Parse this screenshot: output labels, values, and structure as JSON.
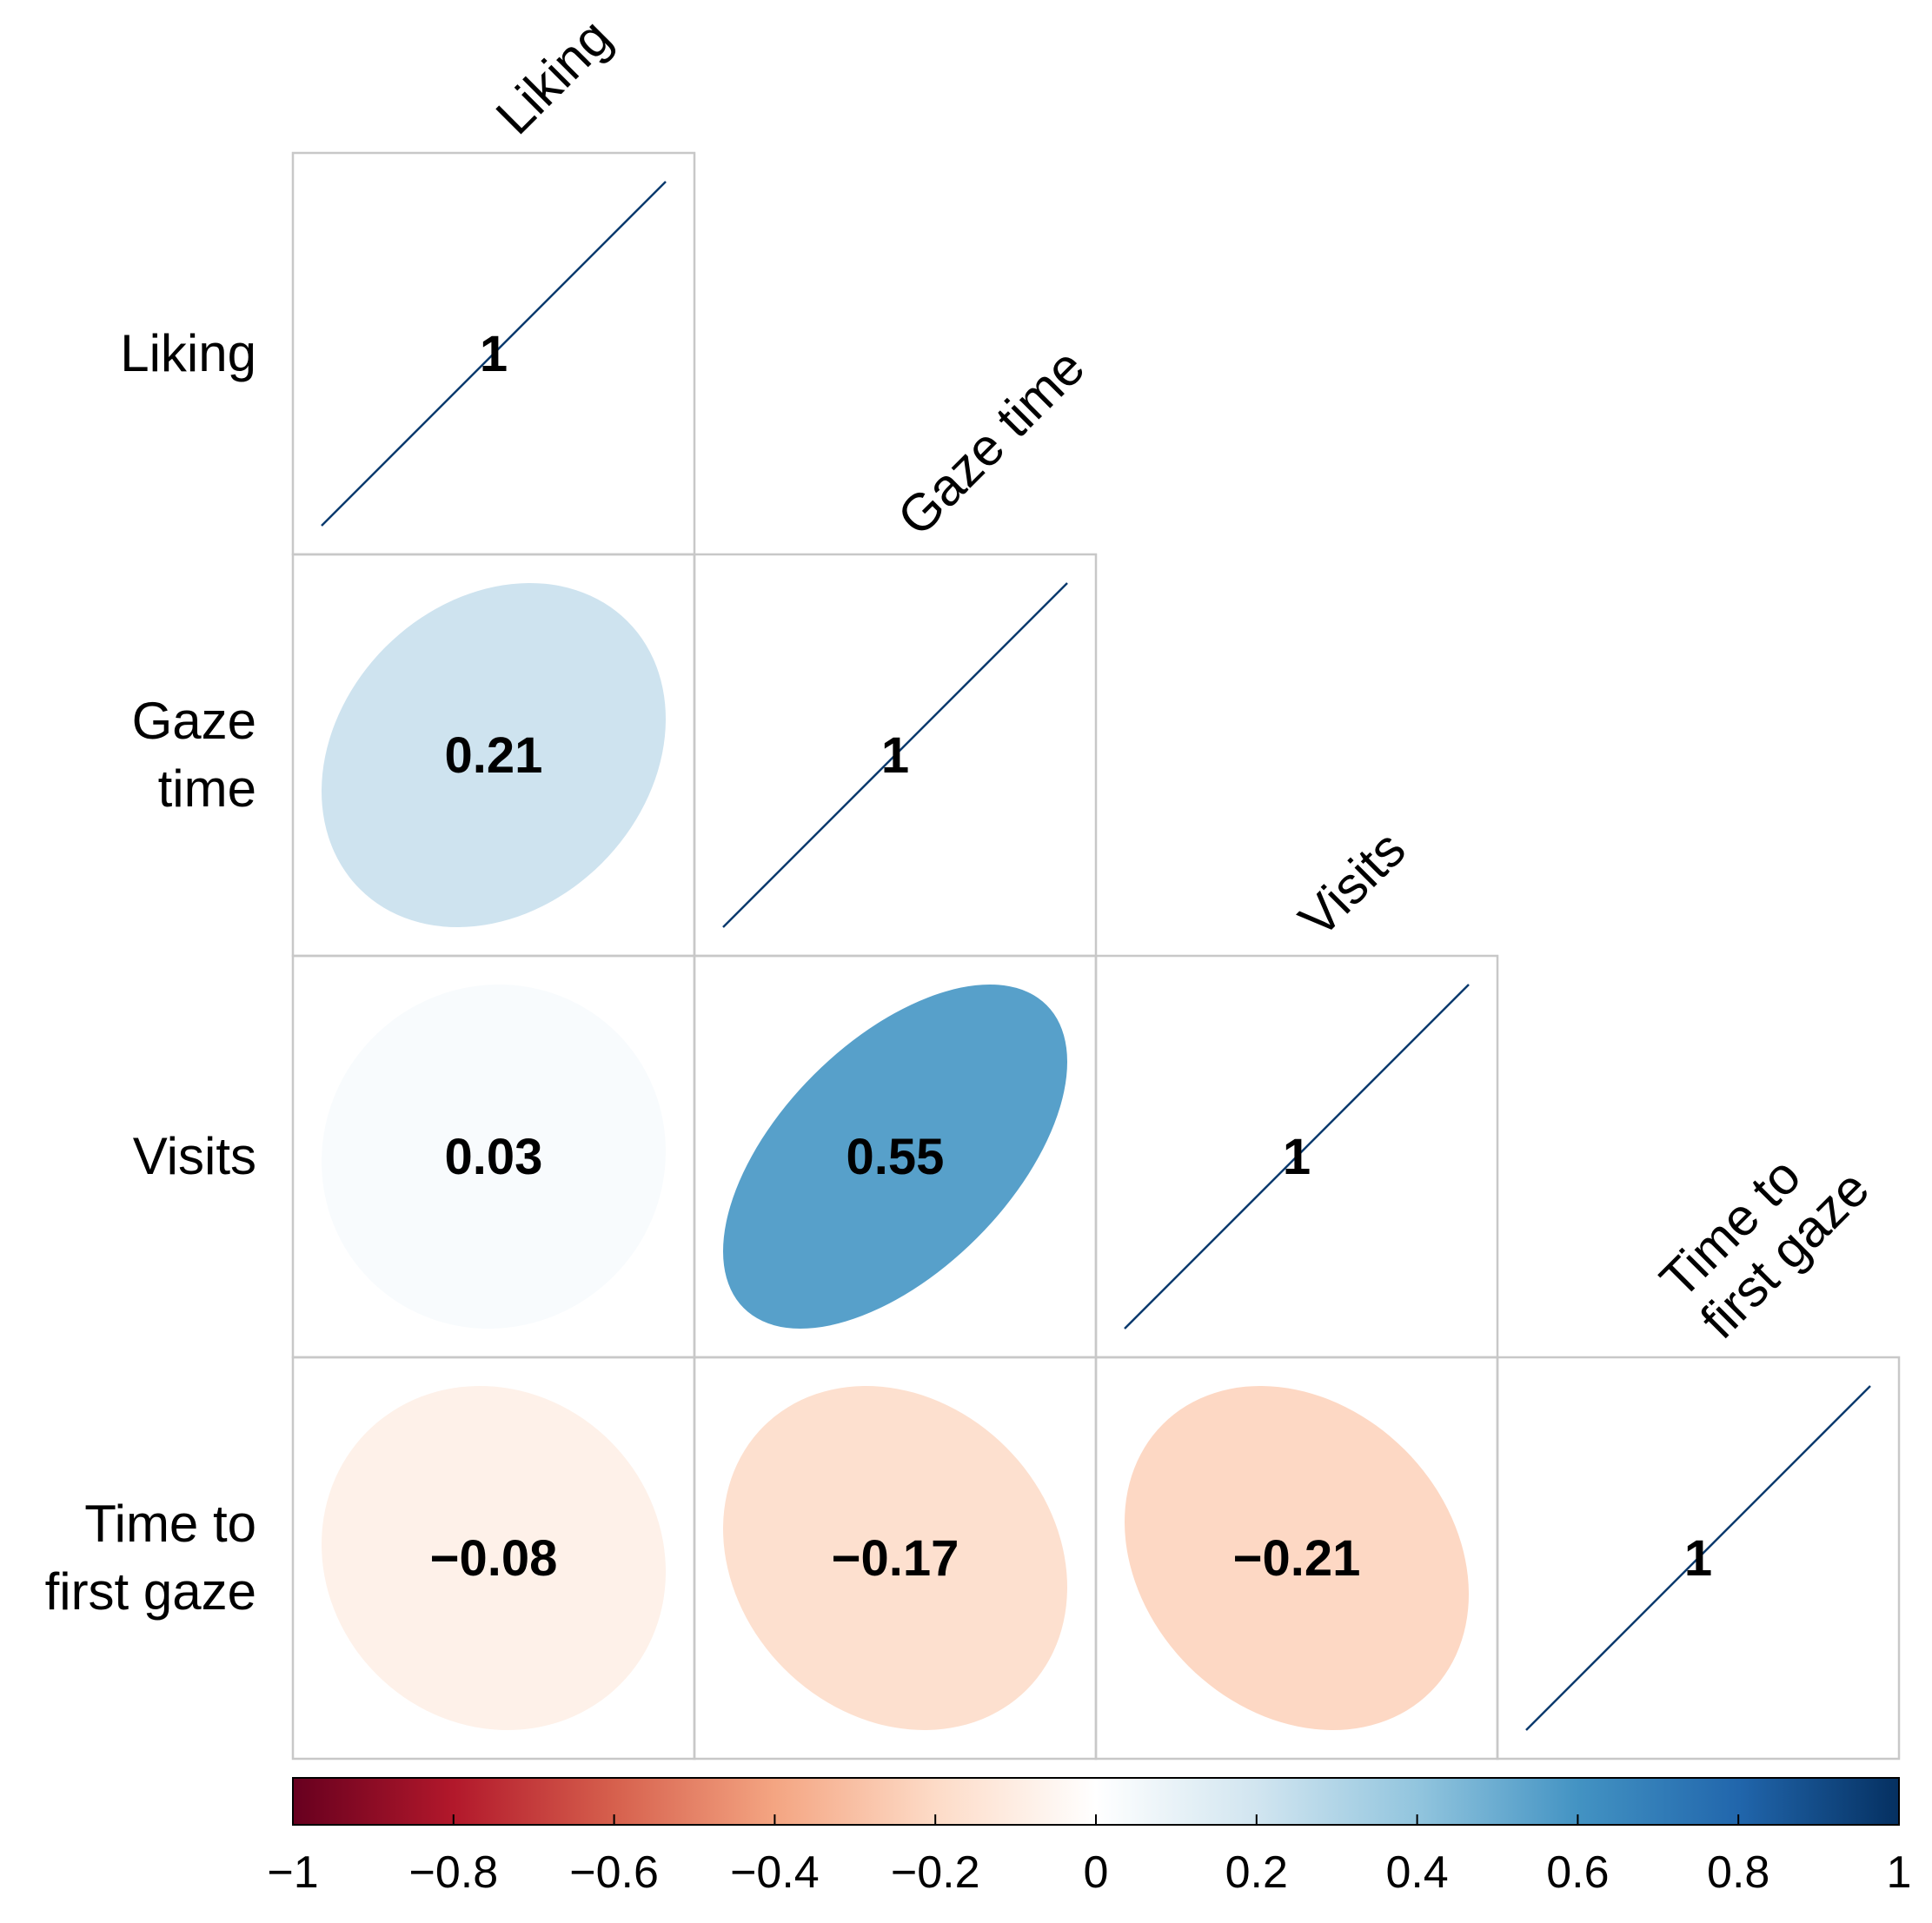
{
  "chart_data": {
    "type": "heatmap",
    "subtype": "correlation-ellipse-lower-triangle",
    "variables": [
      {
        "row_lines": [
          "Liking"
        ],
        "col_lines": [
          "Liking"
        ]
      },
      {
        "row_lines": [
          "Gaze",
          "time"
        ],
        "col_lines": [
          "Gaze time"
        ]
      },
      {
        "row_lines": [
          "Visits"
        ],
        "col_lines": [
          "Visits"
        ]
      },
      {
        "row_lines": [
          "Time to",
          "first gaze"
        ],
        "col_lines": [
          "Time to",
          "first gaze"
        ]
      }
    ],
    "matrix": [
      [
        1,
        null,
        null,
        null
      ],
      [
        0.21,
        1,
        null,
        null
      ],
      [
        0.03,
        0.55,
        1,
        null
      ],
      [
        -0.08,
        -0.17,
        -0.21,
        1
      ]
    ],
    "labels": [
      [
        "1",
        null,
        null,
        null
      ],
      [
        "0.21",
        "1",
        null,
        null
      ],
      [
        "0.03",
        "0.55",
        "1",
        null
      ],
      [
        "−0.08",
        "−0.17",
        "−0.21",
        "1"
      ]
    ],
    "colorbar": {
      "range": [
        -1,
        1
      ],
      "ticks": [
        -1,
        -0.8,
        -0.6,
        -0.4,
        -0.2,
        0,
        0.2,
        0.4,
        0.6,
        0.8,
        1
      ],
      "tick_labels": [
        "−1",
        "−0.8",
        "−0.6",
        "−0.4",
        "−0.2",
        "0",
        "0.2",
        "0.4",
        "0.6",
        "0.8",
        "1"
      ],
      "colors": [
        "#67001f",
        "#b2182b",
        "#d6604d",
        "#f4a582",
        "#fddbc7",
        "#ffffff",
        "#d1e5f0",
        "#92c5de",
        "#4393c3",
        "#2166ac",
        "#053061"
      ]
    }
  }
}
